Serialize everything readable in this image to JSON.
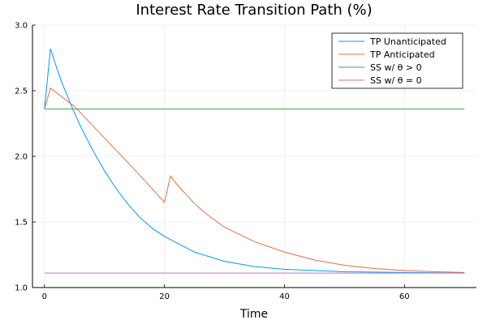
{
  "chart_data": {
    "type": "line",
    "title": "Interest Rate Transition Path (%)",
    "xlabel": "Time",
    "ylabel": "",
    "xlim": [
      -2,
      72
    ],
    "ylim": [
      1.0,
      3.0
    ],
    "xticks": [
      0,
      20,
      40,
      60
    ],
    "yticks": [
      1.0,
      1.5,
      2.0,
      2.5,
      3.0
    ],
    "xtick_labels": [
      "0",
      "20",
      "40",
      "60"
    ],
    "ytick_labels": [
      "1.0",
      "1.5",
      "2.0",
      "2.5",
      "3.0"
    ],
    "grid": true,
    "legend_position": "top-right",
    "series": [
      {
        "name": "TP Unanticipated",
        "color": "#009af9",
        "x": [
          0,
          1,
          2,
          3,
          4,
          5,
          6,
          7,
          8,
          10,
          12,
          14,
          16,
          18,
          20,
          25,
          30,
          35,
          40,
          50,
          60,
          70
        ],
        "y": [
          2.36,
          2.82,
          2.68,
          2.55,
          2.44,
          2.33,
          2.23,
          2.14,
          2.05,
          1.89,
          1.75,
          1.63,
          1.53,
          1.45,
          1.39,
          1.27,
          1.2,
          1.16,
          1.14,
          1.12,
          1.115,
          1.11
        ]
      },
      {
        "name": "TP Anticipated",
        "color": "#e26f46",
        "x": [
          0,
          1,
          3,
          5,
          10,
          15,
          20,
          21,
          22,
          23,
          25,
          27,
          30,
          35,
          40,
          45,
          50,
          55,
          60,
          65,
          70
        ],
        "y": [
          2.36,
          2.52,
          2.45,
          2.38,
          2.14,
          1.9,
          1.65,
          1.85,
          1.79,
          1.74,
          1.64,
          1.56,
          1.46,
          1.35,
          1.27,
          1.21,
          1.17,
          1.145,
          1.13,
          1.12,
          1.115
        ]
      },
      {
        "name": "SS w/ θ > 0",
        "color": "#3da44d",
        "x": [
          0,
          70
        ],
        "y": [
          2.36,
          2.36
        ]
      },
      {
        "name": "SS w/ θ = 0",
        "color": "#c271d2",
        "x": [
          0,
          70
        ],
        "y": [
          1.11,
          1.11
        ]
      }
    ]
  }
}
